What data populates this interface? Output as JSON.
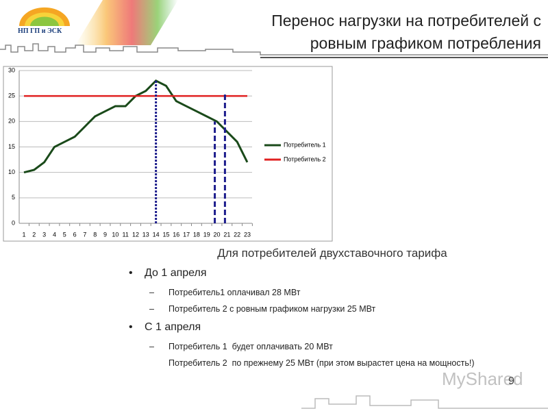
{
  "header": {
    "logo": "НП ГП и ЭСК",
    "title": "Перенос нагрузки на потребителей с ровным графиком потребления"
  },
  "chart_data": {
    "type": "line",
    "categories": [
      "1",
      "2",
      "3",
      "4",
      "5",
      "6",
      "7",
      "8",
      "9",
      "10",
      "11",
      "12",
      "13",
      "14",
      "15",
      "16",
      "17",
      "18",
      "19",
      "20",
      "21",
      "22",
      "23"
    ],
    "series": [
      {
        "name": "Потребитель 1",
        "color": "#1a4a1a",
        "values": [
          10,
          10.5,
          12,
          15,
          16,
          17,
          19,
          21,
          22,
          23,
          23,
          25,
          26,
          28,
          27,
          24,
          23,
          22,
          21,
          20,
          18,
          16,
          12
        ]
      },
      {
        "name": "Потребитель 2",
        "color": "#e02020",
        "values": [
          25,
          25,
          25,
          25,
          25,
          25,
          25,
          25,
          25,
          25,
          25,
          25,
          25,
          25,
          25,
          25,
          25,
          25,
          25,
          25,
          25,
          25,
          25
        ]
      }
    ],
    "ylim": [
      0,
      30
    ],
    "yticks": [
      0,
      5,
      10,
      15,
      20,
      25,
      30
    ],
    "grid": true,
    "legend": "right",
    "vlines": {
      "color": "#1c1c8c",
      "x": [
        14,
        19.8,
        20.8
      ],
      "top": [
        28,
        20,
        25.5
      ]
    }
  },
  "subtitle": "Для потребителей двухставочного тарифа",
  "bullets": [
    {
      "text": "До 1 апреля",
      "items": [
        "Потребитель1 оплачивал 28 МВт",
        "Потребитель 2 с ровным графиком нагрузки 25 МВт"
      ]
    },
    {
      "text": "С 1 апреля",
      "items": [
        "Потребитель 1  будет оплачивать 20 МВт",
        "Потребитель 2  по прежнему 25 МВт (при этом вырастет цена на мощность!)"
      ]
    }
  ],
  "page_number": "9",
  "watermark": "MyShared"
}
